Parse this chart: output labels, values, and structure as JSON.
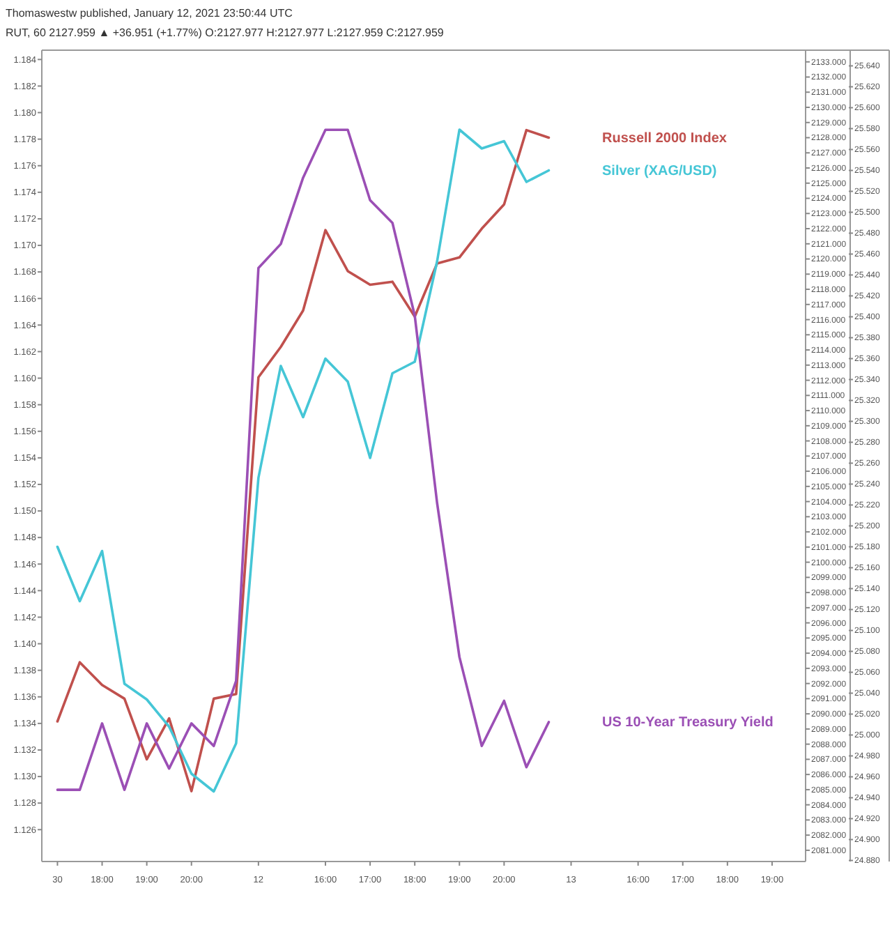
{
  "chart_data": {
    "type": "line",
    "title": "Thomaswestw published, January 12, 2021 23:50:44 UTC",
    "subtitle": "RUT, 60 2127.959 ▲ +36.951 (+1.77%) O:2127.977 H:2127.977 L:2127.959 C:2127.959",
    "categories": [
      "30",
      null,
      "18:00",
      null,
      "19:00",
      null,
      "20:00",
      null,
      null,
      "12",
      null,
      null,
      "16:00",
      null,
      "17:00",
      null,
      "18:00",
      null,
      "19:00",
      null,
      "20:00",
      null,
      null,
      "13",
      null,
      null,
      "16:00",
      null,
      "17:00",
      null,
      "18:00",
      null,
      "19:00",
      null
    ],
    "series": [
      {
        "name": "Russell 2000 Index",
        "color": "#c0504d",
        "axis": "y2",
        "values": [
          2089.5,
          2093.4,
          2091.9,
          2091.0,
          2087.0,
          2089.7,
          2084.9,
          2091.0,
          2091.3,
          2112.2,
          2114.2,
          2116.6,
          2121.9,
          2119.2,
          2118.3,
          2118.5,
          2116.2,
          2119.7,
          2120.1,
          2122.0,
          2123.6,
          2128.5,
          2128.0,
          null,
          null,
          null,
          null,
          null,
          null,
          null,
          null,
          null,
          null,
          null
        ]
      },
      {
        "name": "Silver (XAG/USD)",
        "color": "#45c6d6",
        "axis": "y3",
        "values": [
          25.18,
          25.128,
          25.176,
          25.049,
          25.034,
          25.008,
          24.963,
          24.946,
          24.992,
          25.246,
          25.353,
          25.304,
          25.36,
          25.338,
          25.265,
          25.346,
          25.357,
          25.453,
          25.579,
          25.561,
          25.568,
          25.529,
          25.54,
          null,
          null,
          null,
          null,
          null,
          null,
          null,
          null,
          null,
          null,
          null
        ]
      },
      {
        "name": "US 10-Year Treasury Yield",
        "color": "#9b4fb5",
        "axis": "y",
        "values": [
          1.129,
          1.129,
          1.134,
          1.129,
          1.134,
          1.1306,
          1.134,
          1.1323,
          1.1372,
          1.1683,
          1.1701,
          1.1751,
          1.1787,
          1.1787,
          1.1734,
          1.1717,
          1.1647,
          1.1506,
          1.139,
          1.1323,
          1.1357,
          1.1307,
          1.1341,
          null,
          null,
          null,
          null,
          null,
          null,
          null,
          null,
          null,
          null,
          null
        ]
      }
    ],
    "ylim": [
      1.1236,
      1.1847
    ],
    "yticks": [
      {
        "value": 1.126,
        "label": "1.126"
      },
      {
        "value": 1.128,
        "label": "1.128"
      },
      {
        "value": 1.13,
        "label": "1.130"
      },
      {
        "value": 1.132,
        "label": "1.132"
      },
      {
        "value": 1.134,
        "label": "1.134"
      },
      {
        "value": 1.136,
        "label": "1.136"
      },
      {
        "value": 1.138,
        "label": "1.138"
      },
      {
        "value": 1.14,
        "label": "1.140"
      },
      {
        "value": 1.142,
        "label": "1.142"
      },
      {
        "value": 1.144,
        "label": "1.144"
      },
      {
        "value": 1.146,
        "label": "1.146"
      },
      {
        "value": 1.148,
        "label": "1.148"
      },
      {
        "value": 1.15,
        "label": "1.150"
      },
      {
        "value": 1.152,
        "label": "1.152"
      },
      {
        "value": 1.154,
        "label": "1.154"
      },
      {
        "value": 1.156,
        "label": "1.156"
      },
      {
        "value": 1.158,
        "label": "1.158"
      },
      {
        "value": 1.16,
        "label": "1.160"
      },
      {
        "value": 1.162,
        "label": "1.162"
      },
      {
        "value": 1.164,
        "label": "1.164"
      },
      {
        "value": 1.166,
        "label": "1.166"
      },
      {
        "value": 1.168,
        "label": "1.168"
      },
      {
        "value": 1.17,
        "label": "1.170"
      },
      {
        "value": 1.172,
        "label": "1.172"
      },
      {
        "value": 1.174,
        "label": "1.174"
      },
      {
        "value": 1.176,
        "label": "1.176"
      },
      {
        "value": 1.178,
        "label": "1.178"
      },
      {
        "value": 1.18,
        "label": "1.180"
      },
      {
        "value": 1.182,
        "label": "1.182"
      },
      {
        "value": 1.184,
        "label": "1.184"
      }
    ],
    "y2lim": [
      2080.26,
      2133.77
    ],
    "y2ticks": [
      {
        "value": 2081,
        "label": "2081.000"
      },
      {
        "value": 2082,
        "label": "2082.000"
      },
      {
        "value": 2083,
        "label": "2083.000"
      },
      {
        "value": 2084,
        "label": "2084.000"
      },
      {
        "value": 2085,
        "label": "2085.000"
      },
      {
        "value": 2086,
        "label": "2086.000"
      },
      {
        "value": 2087,
        "label": "2087.000"
      },
      {
        "value": 2088,
        "label": "2088.000"
      },
      {
        "value": 2089,
        "label": "2089.000"
      },
      {
        "value": 2090,
        "label": "2090.000"
      },
      {
        "value": 2091,
        "label": "2091.000"
      },
      {
        "value": 2092,
        "label": "2092.000"
      },
      {
        "value": 2093,
        "label": "2093.000"
      },
      {
        "value": 2094,
        "label": "2094.000"
      },
      {
        "value": 2095,
        "label": "2095.000"
      },
      {
        "value": 2096,
        "label": "2096.000"
      },
      {
        "value": 2097,
        "label": "2097.000"
      },
      {
        "value": 2098,
        "label": "2098.000"
      },
      {
        "value": 2099,
        "label": "2099.000"
      },
      {
        "value": 2100,
        "label": "2100.000"
      },
      {
        "value": 2101,
        "label": "2101.000"
      },
      {
        "value": 2102,
        "label": "2102.000"
      },
      {
        "value": 2103,
        "label": "2103.000"
      },
      {
        "value": 2104,
        "label": "2104.000"
      },
      {
        "value": 2105,
        "label": "2105.000"
      },
      {
        "value": 2106,
        "label": "2106.000"
      },
      {
        "value": 2107,
        "label": "2107.000"
      },
      {
        "value": 2108,
        "label": "2108.000"
      },
      {
        "value": 2109,
        "label": "2109.000"
      },
      {
        "value": 2110,
        "label": "2110.000"
      },
      {
        "value": 2111,
        "label": "2111.000"
      },
      {
        "value": 2112,
        "label": "2112.000"
      },
      {
        "value": 2113,
        "label": "2113.000"
      },
      {
        "value": 2114,
        "label": "2114.000"
      },
      {
        "value": 2115,
        "label": "2115.000"
      },
      {
        "value": 2116,
        "label": "2116.000"
      },
      {
        "value": 2117,
        "label": "2117.000"
      },
      {
        "value": 2118,
        "label": "2118.000"
      },
      {
        "value": 2119,
        "label": "2119.000"
      },
      {
        "value": 2120,
        "label": "2120.000"
      },
      {
        "value": 2121,
        "label": "2121.000"
      },
      {
        "value": 2122,
        "label": "2122.000"
      },
      {
        "value": 2123,
        "label": "2123.000"
      },
      {
        "value": 2124,
        "label": "2124.000"
      },
      {
        "value": 2125,
        "label": "2125.000"
      },
      {
        "value": 2126,
        "label": "2126.000"
      },
      {
        "value": 2127,
        "label": "2127.000"
      },
      {
        "value": 2128,
        "label": "2128.000"
      },
      {
        "value": 2129,
        "label": "2129.000"
      },
      {
        "value": 2130,
        "label": "2130.000"
      },
      {
        "value": 2131,
        "label": "2131.000"
      },
      {
        "value": 2132,
        "label": "2132.000"
      },
      {
        "value": 2133,
        "label": "2133.000"
      }
    ],
    "y3lim": [
      24.879,
      25.655
    ],
    "y3ticks": [
      {
        "value": 24.88,
        "label": "24.880"
      },
      {
        "value": 24.9,
        "label": "24.900"
      },
      {
        "value": 24.92,
        "label": "24.920"
      },
      {
        "value": 24.94,
        "label": "24.940"
      },
      {
        "value": 24.96,
        "label": "24.960"
      },
      {
        "value": 24.98,
        "label": "24.980"
      },
      {
        "value": 25,
        "label": "25.000"
      },
      {
        "value": 25.02,
        "label": "25.020"
      },
      {
        "value": 25.04,
        "label": "25.040"
      },
      {
        "value": 25.06,
        "label": "25.060"
      },
      {
        "value": 25.08,
        "label": "25.080"
      },
      {
        "value": 25.1,
        "label": "25.100"
      },
      {
        "value": 25.12,
        "label": "25.120"
      },
      {
        "value": 25.14,
        "label": "25.140"
      },
      {
        "value": 25.16,
        "label": "25.160"
      },
      {
        "value": 25.18,
        "label": "25.180"
      },
      {
        "value": 25.2,
        "label": "25.200"
      },
      {
        "value": 25.22,
        "label": "25.220"
      },
      {
        "value": 25.24,
        "label": "25.240"
      },
      {
        "value": 25.26,
        "label": "25.260"
      },
      {
        "value": 25.28,
        "label": "25.280"
      },
      {
        "value": 25.3,
        "label": "25.300"
      },
      {
        "value": 25.32,
        "label": "25.320"
      },
      {
        "value": 25.34,
        "label": "25.340"
      },
      {
        "value": 25.36,
        "label": "25.360"
      },
      {
        "value": 25.38,
        "label": "25.380"
      },
      {
        "value": 25.4,
        "label": "25.400"
      },
      {
        "value": 25.42,
        "label": "25.420"
      },
      {
        "value": 25.44,
        "label": "25.440"
      },
      {
        "value": 25.46,
        "label": "25.460"
      },
      {
        "value": 25.48,
        "label": "25.480"
      },
      {
        "value": 25.5,
        "label": "25.500"
      },
      {
        "value": 25.52,
        "label": "25.520"
      },
      {
        "value": 25.54,
        "label": "25.540"
      },
      {
        "value": 25.56,
        "label": "25.560"
      },
      {
        "value": 25.58,
        "label": "25.580"
      },
      {
        "value": 25.6,
        "label": "25.600"
      },
      {
        "value": 25.62,
        "label": "25.620"
      },
      {
        "value": 25.64,
        "label": "25.640"
      }
    ]
  }
}
